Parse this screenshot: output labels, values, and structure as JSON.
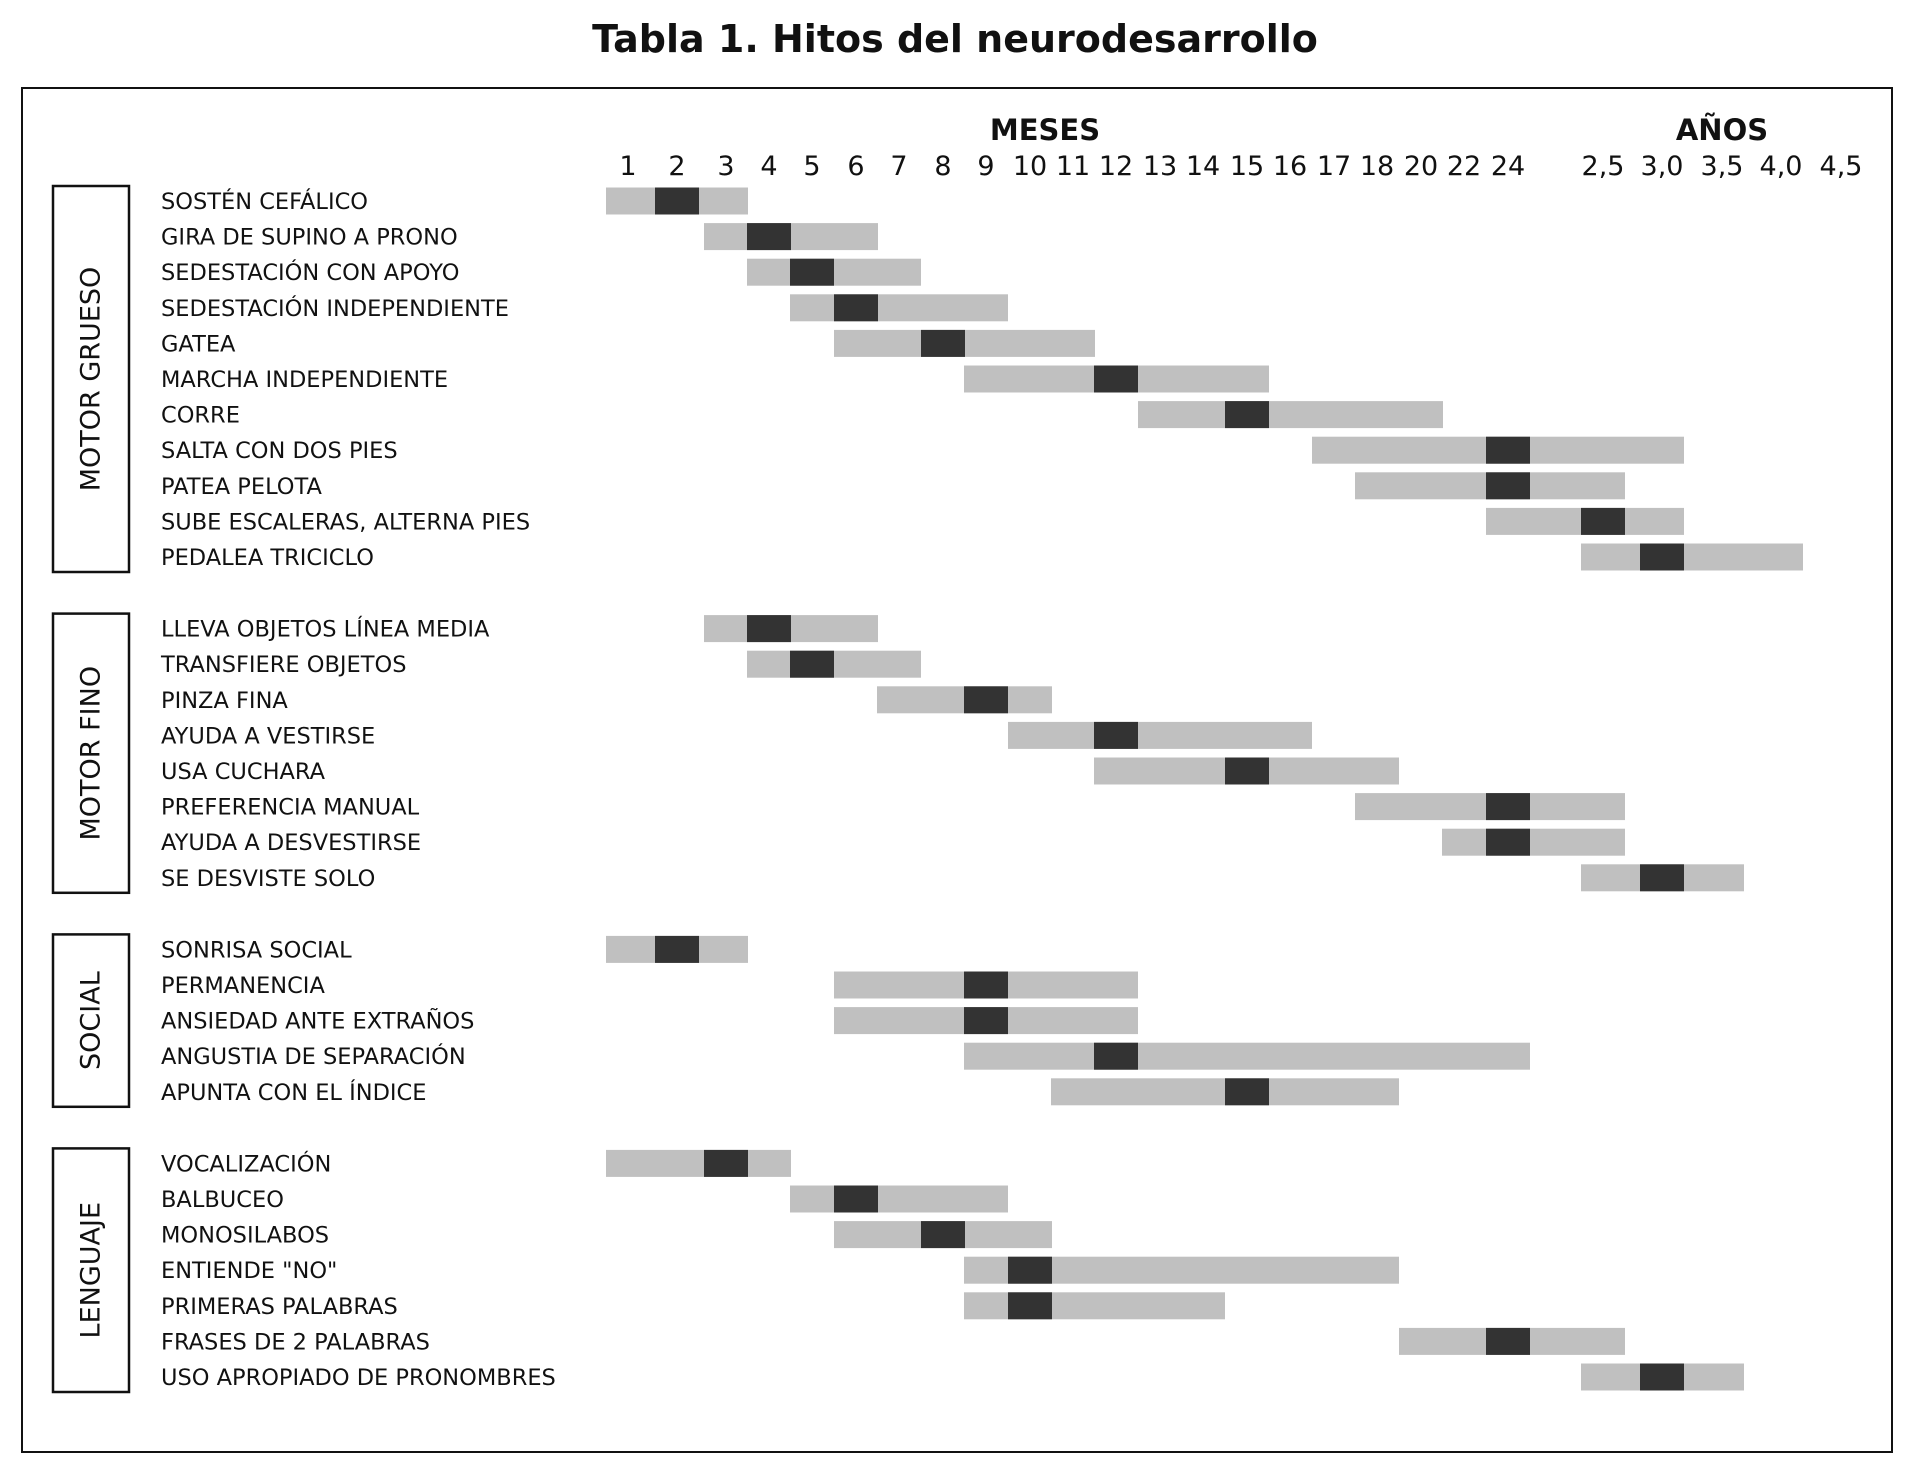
{
  "chart_data": {
    "type": "bar",
    "title": "Tabla 1. Hitos del neurodesarrollo",
    "axis_headers": {
      "months": "MESES",
      "years": "AÑOS"
    },
    "ticks": [
      "1",
      "2",
      "3",
      "4",
      "5",
      "6",
      "7",
      "8",
      "9",
      "10",
      "11",
      "12",
      "13",
      "14",
      "15",
      "16",
      "17",
      "18",
      "20",
      "22",
      "24",
      "2,5",
      "3,0",
      "3,5",
      "4,0",
      "4,5"
    ],
    "colors": {
      "range": "#c0c0c0",
      "peak": "#333333",
      "border": "#111111"
    },
    "groups": [
      {
        "name": "MOTOR GRUESO",
        "items": [
          {
            "label": "SOSTÉN CEFÁLICO",
            "range": [
              "1",
              "3"
            ],
            "peak": "2"
          },
          {
            "label": "GIRA DE SUPINO A PRONO",
            "range": [
              "3",
              "6"
            ],
            "peak": "4"
          },
          {
            "label": "SEDESTACIÓN CON APOYO",
            "range": [
              "4",
              "7"
            ],
            "peak": "5"
          },
          {
            "label": "SEDESTACIÓN INDEPENDIENTE",
            "range": [
              "5",
              "9"
            ],
            "peak": "6"
          },
          {
            "label": "GATEA",
            "range": [
              "6",
              "11"
            ],
            "peak": "8"
          },
          {
            "label": "MARCHA INDEPENDIENTE",
            "range": [
              "9",
              "15"
            ],
            "peak": "12"
          },
          {
            "label": "CORRE",
            "range": [
              "13",
              "20"
            ],
            "peak": "15"
          },
          {
            "label": "SALTA CON DOS PIES",
            "range": [
              "17",
              "3,0"
            ],
            "peak": "24"
          },
          {
            "label": "PATEA PELOTA",
            "range": [
              "18",
              "2,5"
            ],
            "peak": "24"
          },
          {
            "label": "SUBE ESCALERAS, ALTERNA PIES",
            "range": [
              "24",
              "3,0"
            ],
            "peak": "2,5"
          },
          {
            "label": "PEDALEA TRICICLO",
            "range": [
              "2,5",
              "4,0"
            ],
            "peak": "3,0"
          }
        ]
      },
      {
        "name": "MOTOR FINO",
        "items": [
          {
            "label": "LLEVA OBJETOS LÍNEA MEDIA",
            "range": [
              "3",
              "6"
            ],
            "peak": "4"
          },
          {
            "label": "TRANSFIERE OBJETOS",
            "range": [
              "4",
              "7"
            ],
            "peak": "5"
          },
          {
            "label": "PINZA FINA",
            "range": [
              "7",
              "10"
            ],
            "peak": "9"
          },
          {
            "label": "AYUDA A VESTIRSE",
            "range": [
              "10",
              "16"
            ],
            "peak": "12"
          },
          {
            "label": "USA CUCHARA",
            "range": [
              "12",
              "18"
            ],
            "peak": "15"
          },
          {
            "label": "PREFERENCIA MANUAL",
            "range": [
              "18",
              "2,5"
            ],
            "peak": "24"
          },
          {
            "label": "AYUDA A DESVESTIRSE",
            "range": [
              "22",
              "2,5"
            ],
            "peak": "24"
          },
          {
            "label": "SE DESVISTE SOLO",
            "range": [
              "2,5",
              "3,5"
            ],
            "peak": "3,0"
          }
        ]
      },
      {
        "name": "SOCIAL",
        "items": [
          {
            "label": "SONRISA SOCIAL",
            "range": [
              "1",
              "3"
            ],
            "peak": "2"
          },
          {
            "label": "PERMANENCIA",
            "range": [
              "6",
              "12"
            ],
            "peak": "9"
          },
          {
            "label": "ANSIEDAD ANTE EXTRAÑOS",
            "range": [
              "6",
              "12"
            ],
            "peak": "9"
          },
          {
            "label": "ANGUSTIA DE SEPARACIÓN",
            "range": [
              "9",
              "24"
            ],
            "peak": "12"
          },
          {
            "label": "APUNTA CON EL ÍNDICE",
            "range": [
              "11",
              "18"
            ],
            "peak": "15"
          }
        ]
      },
      {
        "name": "LENGUAJE",
        "items": [
          {
            "label": "VOCALIZACIÓN",
            "range": [
              "1",
              "4"
            ],
            "peak": "3"
          },
          {
            "label": "BALBUCEO",
            "range": [
              "5",
              "9"
            ],
            "peak": "6"
          },
          {
            "label": "MONOSILABOS",
            "range": [
              "6",
              "10"
            ],
            "peak": "8"
          },
          {
            "label": "ENTIENDE \"NO\"",
            "range": [
              "9",
              "18"
            ],
            "peak": "10"
          },
          {
            "label": "PRIMERAS PALABRAS",
            "range": [
              "9",
              "14"
            ],
            "peak": "10"
          },
          {
            "label": "FRASES DE 2 PALABRAS",
            "range": [
              "20",
              "2,5"
            ],
            "peak": "24"
          },
          {
            "label": "USO APROPIADO DE PRONOMBRES",
            "range": [
              "2,5",
              "3,5"
            ],
            "peak": "3,0"
          }
        ]
      }
    ]
  }
}
